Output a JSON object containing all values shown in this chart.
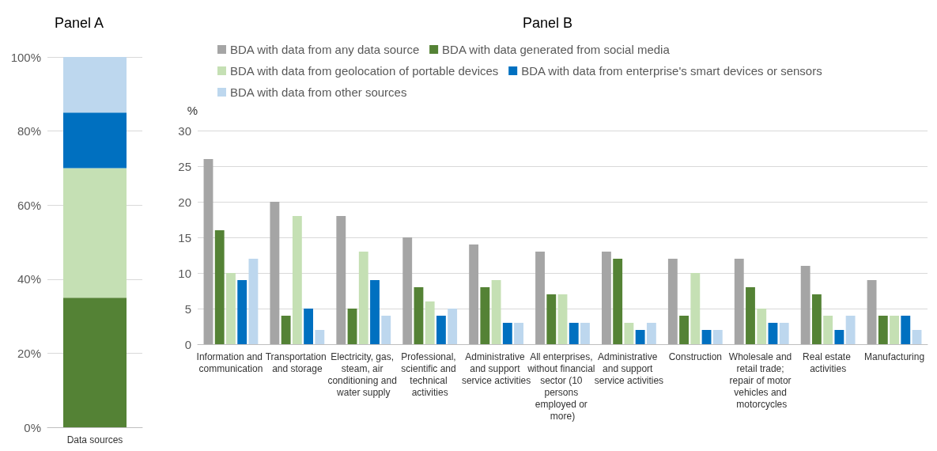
{
  "chart_data": [
    {
      "type": "bar",
      "title": "Panel A",
      "stacked": true,
      "categories": [
        "Data sources"
      ],
      "ylim": [
        0,
        100
      ],
      "yticks": [
        {
          "value": 0,
          "label": "0%"
        },
        {
          "value": 20,
          "label": "20%"
        },
        {
          "value": 40,
          "label": "40%"
        },
        {
          "value": 60,
          "label": "60%"
        },
        {
          "value": 80,
          "label": "80%"
        },
        {
          "value": 100,
          "label": "100%"
        }
      ],
      "grid": "y",
      "legend": false,
      "series": [
        {
          "color": "#548235",
          "values": [
            35
          ]
        },
        {
          "color": "#c5e0b4",
          "values": [
            35
          ]
        },
        {
          "color": "#0070c0",
          "values": [
            15
          ]
        },
        {
          "color": "#bdd7ee",
          "values": [
            15
          ]
        }
      ]
    },
    {
      "type": "bar",
      "title": "Panel B",
      "ylabel": "%",
      "ylim": [
        0,
        30
      ],
      "yticks": [
        0,
        5,
        10,
        15,
        20,
        25,
        30
      ],
      "grid": "y",
      "legend": "top",
      "categories": [
        "Information and communication",
        "Transportation and storage",
        "Electricity, gas, steam, air conditioning and water supply",
        "Professional, scientific and technical activities",
        "Administrative and support service activities",
        "All enterprises, without financial sector (10 persons employed or more)",
        "Administrative and support service activities",
        "Construction",
        "Wholesale and retail trade; repair of motor vehicles and motorcycles",
        "Real estate activities",
        "Manufacturing"
      ],
      "series": [
        {
          "name": "BDA with data from any data source",
          "color": "#a5a5a5",
          "values": [
            26,
            20,
            18,
            15,
            14,
            13,
            13,
            12,
            12,
            11,
            9
          ]
        },
        {
          "name": "BDA with data generated from social media",
          "color": "#548235",
          "values": [
            16,
            4,
            5,
            8,
            8,
            7,
            12,
            4,
            8,
            7,
            4
          ]
        },
        {
          "name": "BDA with data from geolocation of portable devices",
          "color": "#c5e0b4",
          "values": [
            10,
            18,
            13,
            6,
            9,
            7,
            3,
            10,
            5,
            4,
            4
          ]
        },
        {
          "name": "BDA with data from enterprise's smart devices or sensors",
          "color": "#0070c0",
          "values": [
            9,
            5,
            9,
            4,
            3,
            3,
            2,
            2,
            3,
            2,
            4
          ]
        },
        {
          "name": "BDA with data from other sources",
          "color": "#bdd7ee",
          "values": [
            12,
            2,
            4,
            5,
            3,
            3,
            3,
            2,
            3,
            4,
            2
          ]
        }
      ]
    }
  ]
}
